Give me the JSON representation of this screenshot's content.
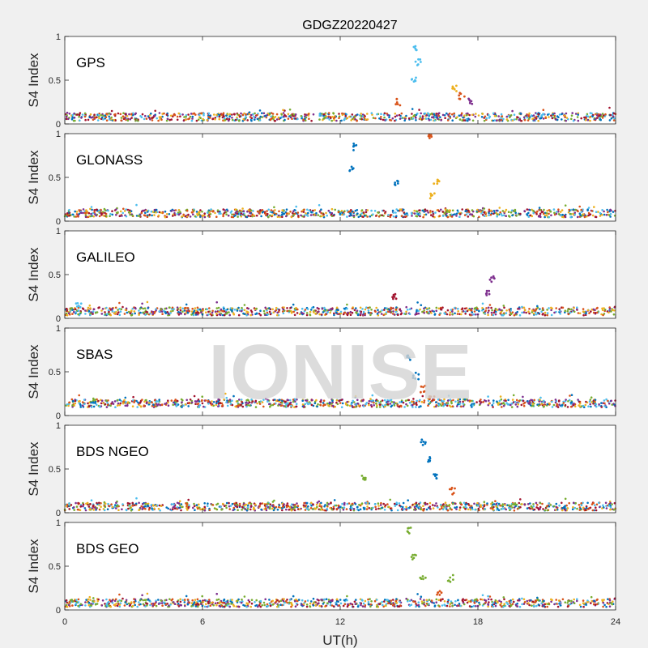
{
  "chart_data": {
    "type": "scatter",
    "title": "GDGZ20220427",
    "xlabel": "UT(h)",
    "ylabel": "S4 Index",
    "xlim": [
      0,
      24
    ],
    "ylim": [
      0,
      1
    ],
    "xticks": [
      "0",
      "6",
      "12",
      "18",
      "24"
    ],
    "yticks": [
      "0",
      "0.5",
      "1"
    ],
    "watermark": "IONISE",
    "series_colors": [
      "#0072BD",
      "#D95319",
      "#EDB120",
      "#7E2F8E",
      "#77AC30",
      "#4DBEEE",
      "#A2142F"
    ],
    "panels": [
      {
        "name": "GPS",
        "baseline": 0.08,
        "events": [
          {
            "x": 15.3,
            "y": 0.85,
            "color": "#4DBEEE"
          },
          {
            "x": 15.4,
            "y": 0.7,
            "color": "#4DBEEE"
          },
          {
            "x": 15.2,
            "y": 0.5,
            "color": "#4DBEEE"
          },
          {
            "x": 17.0,
            "y": 0.4,
            "color": "#EDB120"
          },
          {
            "x": 17.3,
            "y": 0.32,
            "color": "#D95319"
          },
          {
            "x": 14.5,
            "y": 0.25,
            "color": "#D95319"
          },
          {
            "x": 17.7,
            "y": 0.25,
            "color": "#7E2F8E"
          }
        ]
      },
      {
        "name": "GLONASS",
        "baseline": 0.09,
        "events": [
          {
            "x": 12.6,
            "y": 0.85,
            "color": "#0072BD"
          },
          {
            "x": 12.5,
            "y": 0.6,
            "color": "#0072BD"
          },
          {
            "x": 15.9,
            "y": 0.97,
            "color": "#D95319"
          },
          {
            "x": 16.2,
            "y": 0.45,
            "color": "#EDB120"
          },
          {
            "x": 16.0,
            "y": 0.3,
            "color": "#EDB120"
          },
          {
            "x": 14.4,
            "y": 0.42,
            "color": "#0072BD"
          }
        ]
      },
      {
        "name": "GALILEO",
        "baseline": 0.08,
        "events": [
          {
            "x": 18.6,
            "y": 0.45,
            "color": "#7E2F8E"
          },
          {
            "x": 18.4,
            "y": 0.3,
            "color": "#7E2F8E"
          },
          {
            "x": 14.4,
            "y": 0.25,
            "color": "#A2142F"
          },
          {
            "x": 0.6,
            "y": 0.15,
            "color": "#4DBEEE"
          }
        ]
      },
      {
        "name": "SBAS",
        "baseline": 0.14,
        "events": [
          {
            "x": 15.0,
            "y": 0.65,
            "color": "#0072BD"
          },
          {
            "x": 15.3,
            "y": 0.45,
            "color": "#0072BD"
          },
          {
            "x": 15.6,
            "y": 0.3,
            "color": "#D95319"
          },
          {
            "x": 16.0,
            "y": 0.2,
            "color": "#D95319"
          }
        ]
      },
      {
        "name": "BDS NGEO",
        "baseline": 0.07,
        "events": [
          {
            "x": 15.6,
            "y": 0.8,
            "color": "#0072BD"
          },
          {
            "x": 15.9,
            "y": 0.6,
            "color": "#0072BD"
          },
          {
            "x": 16.2,
            "y": 0.4,
            "color": "#0072BD"
          },
          {
            "x": 16.9,
            "y": 0.25,
            "color": "#D95319"
          },
          {
            "x": 13.0,
            "y": 0.4,
            "color": "#77AC30"
          }
        ]
      },
      {
        "name": "BDS GEO",
        "baseline": 0.08,
        "events": [
          {
            "x": 15.0,
            "y": 0.9,
            "color": "#77AC30"
          },
          {
            "x": 15.2,
            "y": 0.6,
            "color": "#77AC30"
          },
          {
            "x": 15.6,
            "y": 0.35,
            "color": "#77AC30"
          },
          {
            "x": 16.8,
            "y": 0.36,
            "color": "#77AC30"
          },
          {
            "x": 16.3,
            "y": 0.2,
            "color": "#D95319"
          }
        ]
      }
    ]
  }
}
